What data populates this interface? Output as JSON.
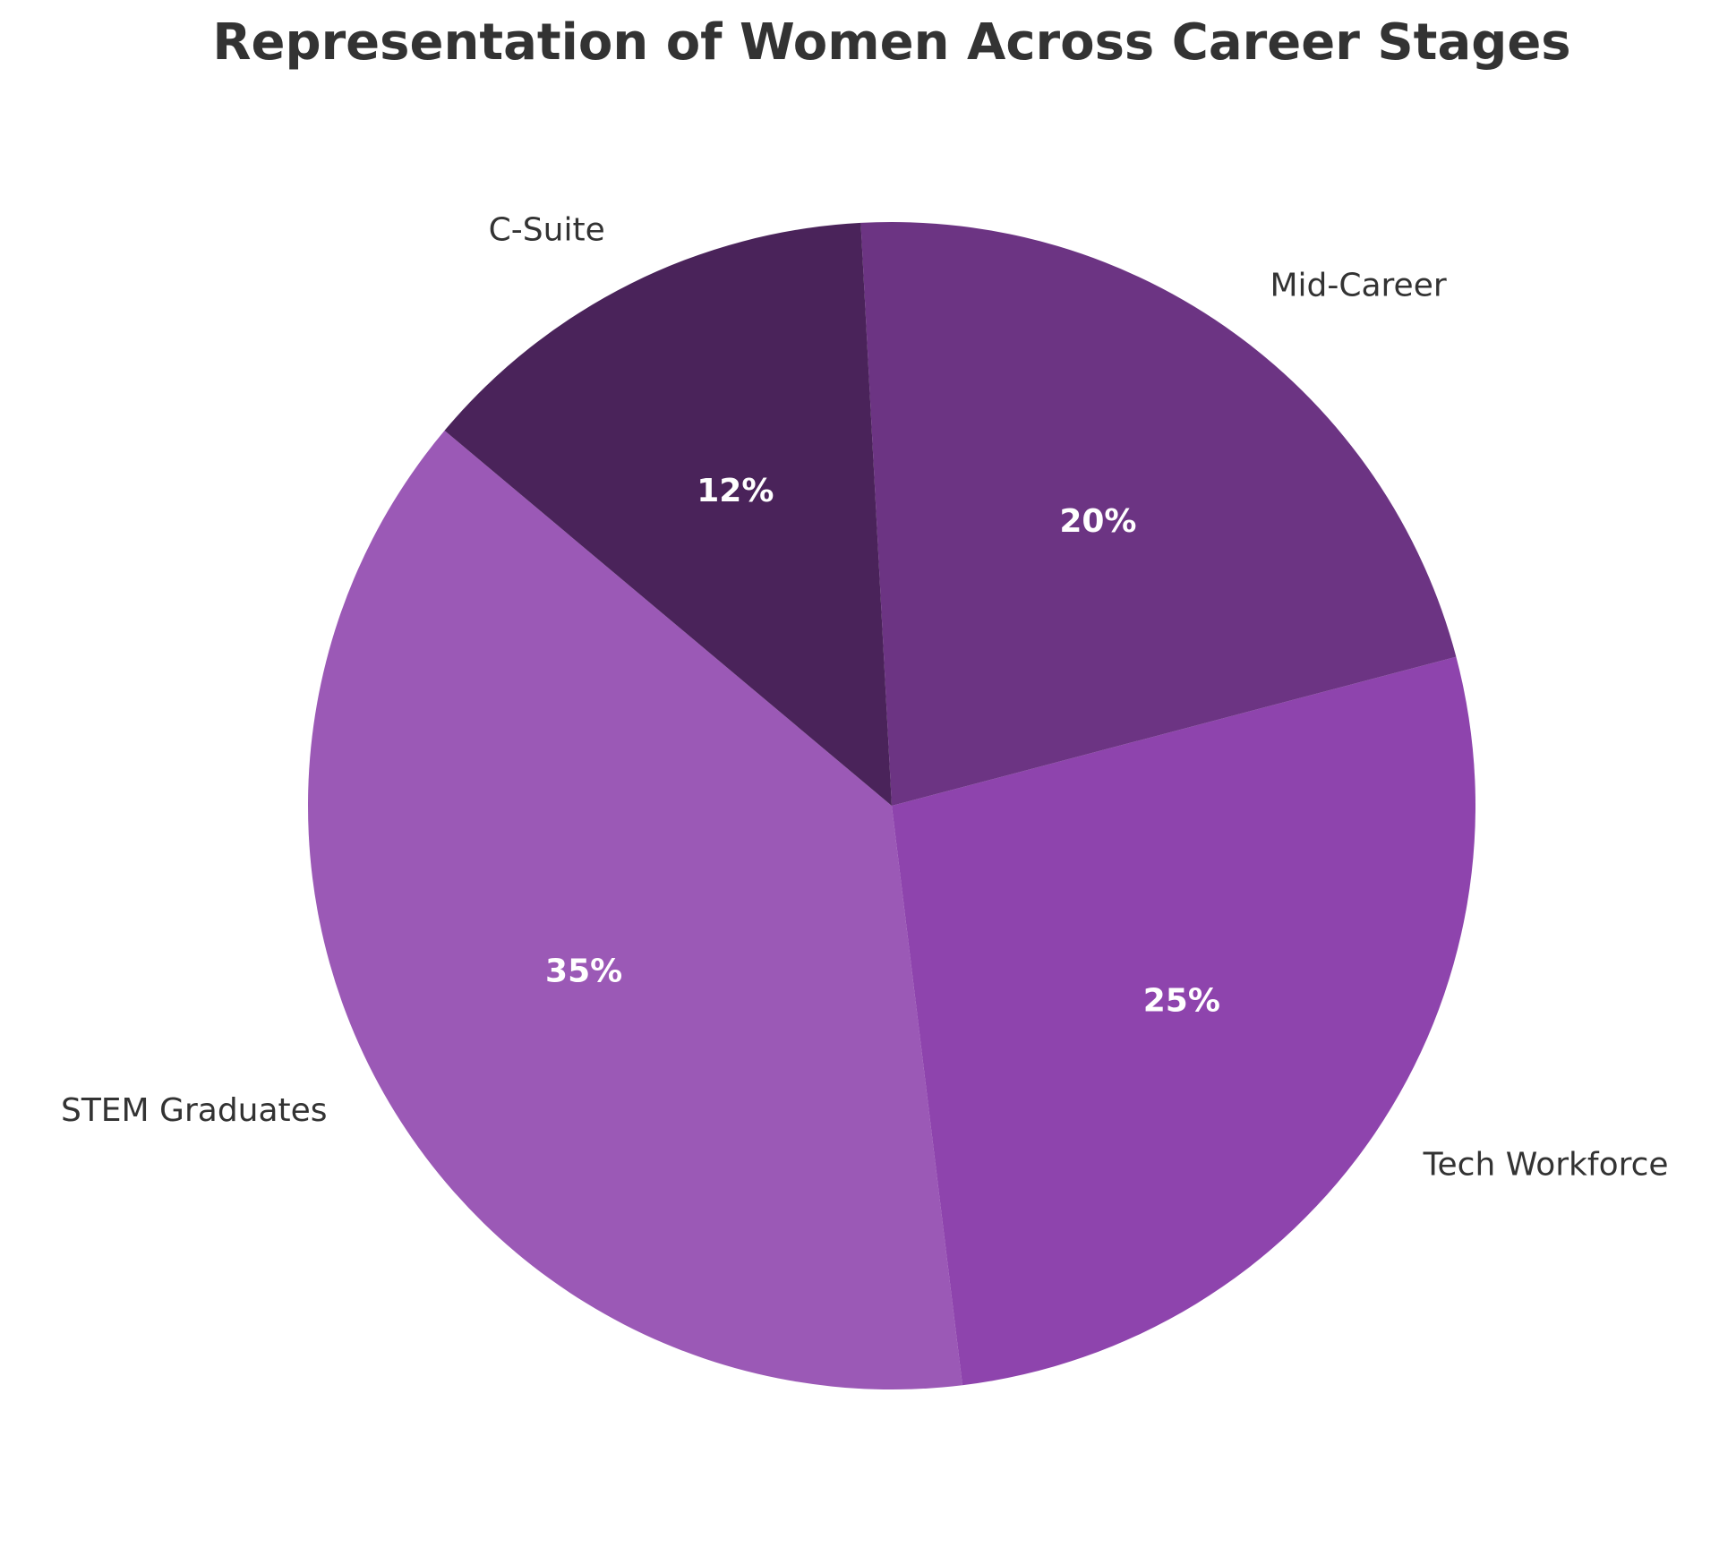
{
  "chart_data": {
    "type": "pie",
    "title": "Representation of Women Across Career Stages",
    "slices": [
      {
        "label": "STEM Graduates",
        "value": 35,
        "pct_label": "35%",
        "color": "#9b59b6"
      },
      {
        "label": "Tech Workforce",
        "value": 25,
        "pct_label": "25%",
        "color": "#8e44ad"
      },
      {
        "label": "Mid-Career",
        "value": 20,
        "pct_label": "20%",
        "color": "#6c3483"
      },
      {
        "label": "C-Suite",
        "value": 12,
        "pct_label": "12%",
        "color": "#4a235a"
      }
    ],
    "start_angle_deg": 140,
    "direction": "counterclockwise",
    "legend": "none"
  }
}
